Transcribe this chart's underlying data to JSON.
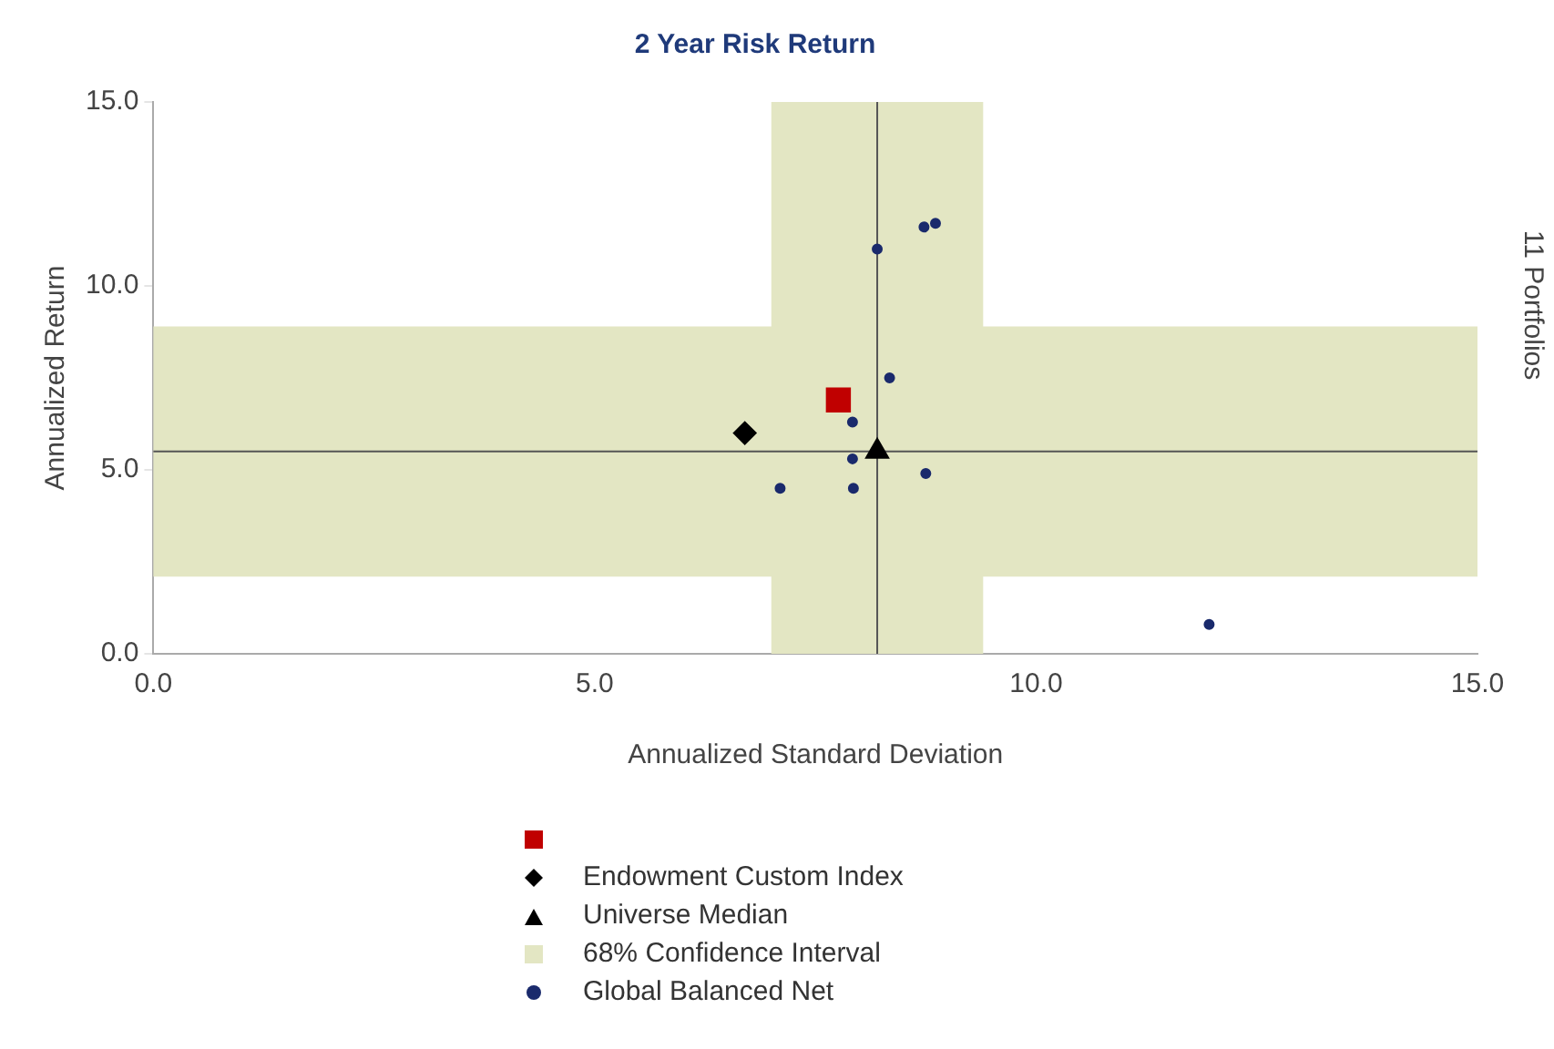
{
  "chart_data": {
    "type": "scatter",
    "title": "2 Year Risk Return",
    "xlabel": "Annualized Standard Deviation",
    "ylabel": "Annualized Return",
    "annotations": [
      "11 Portfolios"
    ],
    "xlim": [
      0,
      15
    ],
    "ylim": [
      0,
      15
    ],
    "xticks": [
      {
        "value": 0,
        "label": "0.0"
      },
      {
        "value": 5,
        "label": "5.0"
      },
      {
        "value": 10,
        "label": "10.0"
      },
      {
        "value": 15,
        "label": "15.0"
      }
    ],
    "yticks": [
      {
        "value": 0,
        "label": "0.0"
      },
      {
        "value": 5,
        "label": "5.0"
      },
      {
        "value": 10,
        "label": "10.0"
      },
      {
        "value": 15,
        "label": "15.0"
      }
    ],
    "grid": false,
    "legend": "bottom",
    "bands": [
      {
        "axis": "x",
        "from": 7.0,
        "to": 9.4,
        "label": "68% Confidence Interval",
        "color": "#e3e6c3"
      },
      {
        "axis": "y",
        "from": 2.1,
        "to": 8.9,
        "color": "#e3e6c3"
      }
    ],
    "ref_lines": [
      {
        "axis": "x",
        "value": 8.2,
        "color": "#555555"
      },
      {
        "axis": "y",
        "value": 5.5,
        "color": "#555555"
      }
    ],
    "series": [
      {
        "color": "#c00000",
        "marker": "square",
        "x": [
          7.76
        ],
        "values": [
          6.9
        ]
      },
      {
        "name": "Endowment Custom Index",
        "color": "#000000",
        "marker": "diamond",
        "x": [
          6.7
        ],
        "values": [
          6.0
        ]
      },
      {
        "name": "Universe Median",
        "color": "#000000",
        "marker": "triangle",
        "x": [
          8.2
        ],
        "values": [
          5.5
        ]
      },
      {
        "name": "Global Balanced Net",
        "color": "#1a2a6c",
        "marker": "circle",
        "x": [
          8.2,
          8.73,
          8.86,
          8.34,
          7.92,
          7.92,
          7.1,
          7.93,
          8.75,
          11.96
        ],
        "values": [
          11.0,
          11.6,
          11.7,
          7.5,
          6.3,
          5.3,
          4.5,
          4.5,
          4.9,
          0.8
        ]
      }
    ]
  }
}
